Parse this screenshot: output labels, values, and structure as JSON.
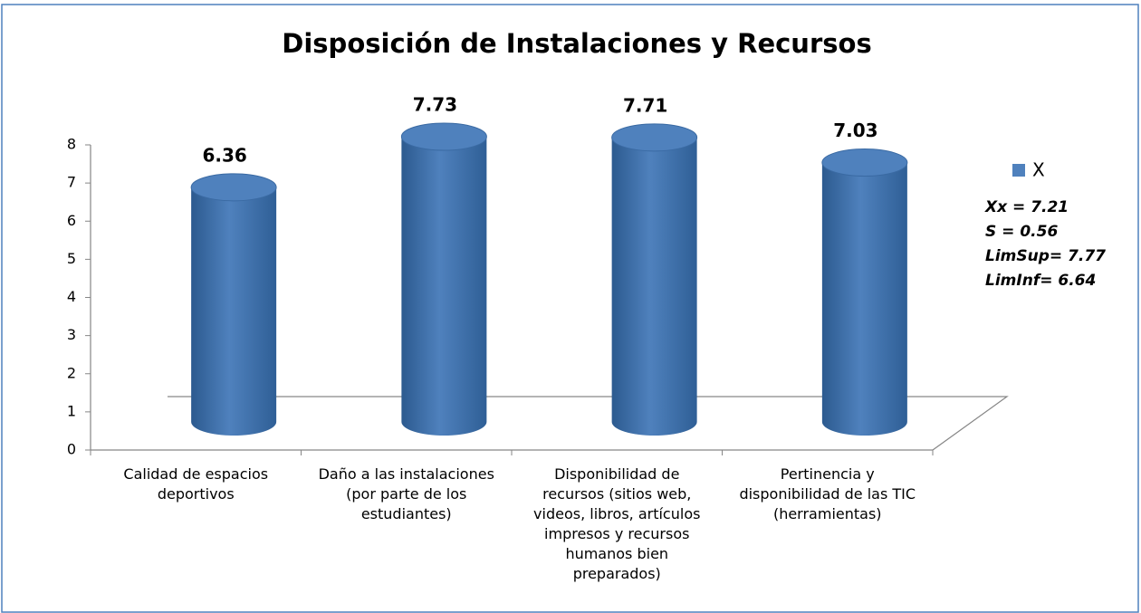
{
  "chart_data": {
    "type": "bar",
    "title": "Disposición de Instalaciones y Recursos",
    "categories": [
      "Calidad de espacios deportivos",
      "Daño a las instalaciones (por parte de los estudiantes)",
      "Disponibilidad de recursos (sitios web, videos, libros, artículos impresos y recursos humanos bien preparados)",
      "Pertinencia y disponibilidad de las TIC (herramientas)"
    ],
    "series": [
      {
        "name": "X",
        "color": "#4f81bd",
        "values": [
          6.36,
          7.73,
          7.71,
          7.03
        ]
      }
    ],
    "ylim": [
      0,
      8
    ],
    "yticks": [
      0,
      1,
      2,
      3,
      4,
      5,
      6,
      7,
      8
    ],
    "annotations": [
      "Xx = 7.21",
      "S = 0.56",
      "LimSup= 7.77",
      "LimInf= 6.64"
    ],
    "legend": "right"
  }
}
